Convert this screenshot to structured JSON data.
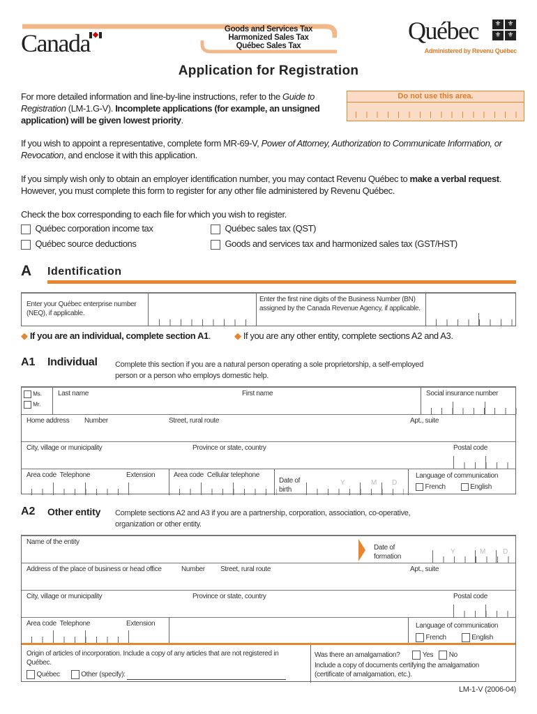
{
  "header": {
    "canada_logo": "Canada",
    "tax_lines": [
      "Goods and Services Tax",
      "Harmonized Sales Tax",
      "Québec Sales Tax"
    ],
    "quebec_logo": "Québec",
    "administered": "Administered by Revenu Québec",
    "accent": "#e8862f"
  },
  "title": "Application for Registration",
  "intro": {
    "p1_a": "For more detailed information and line-by-line instructions, refer to the ",
    "p1_guide": "Guide to Registration",
    "p1_b": " (LM-1.G-V). ",
    "p1_bold": "Incomplete applications (for example, an unsigned application) will be given lowest priority",
    "p1_end": ".",
    "office_box": "Do not use this area.",
    "p2_a": "If you wish to appoint a representative, complete form MR-69-V, ",
    "p2_italic": "Power of Attorney, Authorization to Communicate Information, or Revocation",
    "p2_b": ", and enclose it with this application.",
    "p3_a": "If you simply wish only to obtain an employer identification number, you may contact Revenu Québec to ",
    "p3_bold": "make a verbal request",
    "p3_b": ". However, you must complete this form to register for any other file administered by Revenu Québec.",
    "check_intro": "Check the box corresponding to each file for which you wish to register.",
    "files": [
      "Québec corporation income tax",
      "Québec sales tax (QST)",
      "Québec source deductions",
      "Goods and services tax and harmonized sales tax (GST/HST)"
    ]
  },
  "sectionA": {
    "letter": "A",
    "title": "Identification",
    "neq_label": "Enter your Québec enterprise number (NEQ), if applicable.",
    "bn_label": "Enter the first nine digits of the Business Number (BN) assigned by the Canada Revenue Agency, if applicable.",
    "note_individual": "If you are an individual, complete section A1",
    "note_other": "If you are any other entity, complete sections A2 and A3."
  },
  "a1": {
    "code": "A1",
    "title": "Individual",
    "desc": "Complete this section if you are a natural person operating a sole proprietorship, a self-employed person or a person who employs domestic help.",
    "ms": "Ms.",
    "mr": "Mr.",
    "last_name": "Last name",
    "first_name": "First name",
    "sin": "Social insurance number",
    "home_address": "Home address",
    "number": "Number",
    "street": "Street, rural route",
    "apt": "Apt., suite",
    "city": "City, village or municipality",
    "province": "Province or state, country",
    "postal": "Postal code",
    "area_code": "Area code",
    "telephone": "Telephone",
    "extension": "Extension",
    "area_code2": "Area code",
    "cell": "Cellular telephone",
    "dob": "Date of birth",
    "y": "Y",
    "m": "M",
    "d": "D",
    "language": "Language of communication",
    "french": "French",
    "english": "English"
  },
  "a2": {
    "code": "A2",
    "title": "Other entity",
    "desc": "Complete sections A2 and A3 if you are a partnership, corporation, association, co-operative, organization or other entity.",
    "entity_name": "Name of the entity",
    "date_formation": "Date of formation",
    "y": "Y",
    "m": "M",
    "d": "D",
    "address": "Address of the place of business or head office",
    "number": "Number",
    "street": "Street, rural route",
    "apt": "Apt., suite",
    "city": "City, village or municipality",
    "province": "Province or state, country",
    "postal": "Postal code",
    "area_code": "Area code",
    "telephone": "Telephone",
    "extension": "Extension",
    "language": "Language of communication",
    "french": "French",
    "english": "English",
    "origin": "Origin of articles of incorporation. Include a copy of any articles that are not registered in Québec.",
    "quebec": "Québec",
    "other": "Other (specify):",
    "amalgamation": "Was there an amalgamation?",
    "yes": "Yes",
    "no": "No",
    "amalg_note": "Include a copy of documents certifying the amalgamation (certificate of amalgamation, etc.)."
  },
  "footer": {
    "form_code": "LM-1-V (2006-04)"
  }
}
